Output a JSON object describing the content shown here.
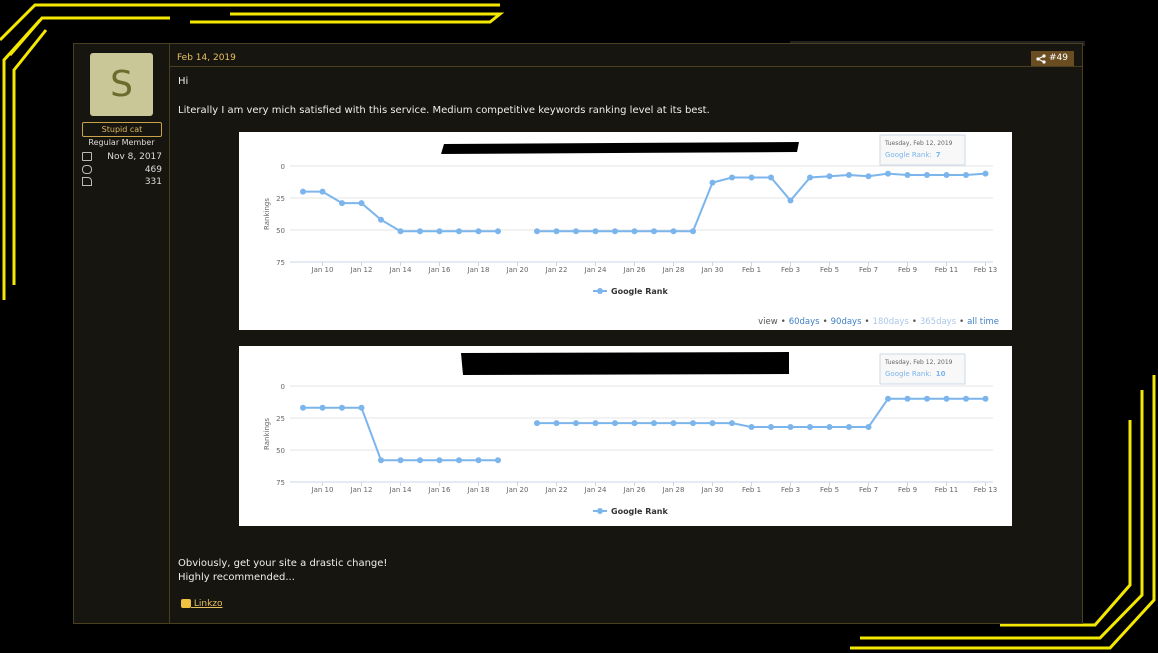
{
  "user": {
    "avatar_letter": "S",
    "title": "Stupid cat",
    "role": "Regular Member",
    "joined": "Nov 8, 2017",
    "messages": "469",
    "reactions": "331"
  },
  "post": {
    "date": "Feb 14, 2019",
    "number": "#49",
    "greeting": "Hi",
    "intro": "Literally I am very mich satisfied with this service. Medium competitive keywords ranking level at its best.",
    "closing": [
      "Obviously, get your site a drastic change!",
      "Highly recommended..."
    ],
    "reaction_user": "Linkzo"
  },
  "chart_data": [
    {
      "type": "line",
      "y_title": "Rankings",
      "ylim": [
        0,
        75
      ],
      "y_reversed": true,
      "yticks": [
        0,
        25,
        50,
        75
      ],
      "grid": true,
      "categories": [
        null,
        "Jan 10",
        null,
        "Jan 12",
        null,
        "Jan 14",
        null,
        "Jan 16",
        null,
        "Jan 18",
        null,
        "Jan 20",
        null,
        "Jan 22",
        null,
        "Jan 24",
        null,
        "Jan 26",
        null,
        "Jan 28",
        null,
        "Jan 30",
        null,
        "Feb 1",
        null,
        "Feb 3",
        null,
        "Feb 5",
        null,
        "Feb 7",
        null,
        "Feb 9",
        null,
        "Feb 11",
        null,
        "Feb 13"
      ],
      "series": [
        {
          "name": "Google Rank",
          "color": "#7cb5ec",
          "values": [
            20,
            20,
            29,
            29,
            42,
            51,
            51,
            51,
            51,
            51,
            51,
            null,
            51,
            51,
            51,
            51,
            51,
            51,
            51,
            51,
            51,
            13,
            9,
            9,
            9,
            27,
            9,
            8,
            7,
            8,
            6,
            7,
            7,
            7,
            7,
            6
          ]
        }
      ],
      "tooltip": {
        "title": "Tuesday, Feb 12, 2019",
        "label": "Google Rank:"
      },
      "range_selector": {
        "prefix": "view",
        "separator": "•",
        "options": [
          "60days",
          "90days",
          "180days",
          "365days",
          "all time"
        ]
      }
    },
    {
      "type": "line",
      "y_title": "Rankings",
      "ylim": [
        0,
        75
      ],
      "y_reversed": true,
      "yticks": [
        0,
        25,
        50,
        75
      ],
      "grid": true,
      "categories": [
        null,
        "Jan 10",
        null,
        "Jan 12",
        null,
        "Jan 14",
        null,
        "Jan 16",
        null,
        "Jan 18",
        null,
        "Jan 20",
        null,
        "Jan 22",
        null,
        "Jan 24",
        null,
        "Jan 26",
        null,
        "Jan 28",
        null,
        "Jan 30",
        null,
        "Feb 1",
        null,
        "Feb 3",
        null,
        "Feb 5",
        null,
        "Feb 7",
        null,
        "Feb 9",
        null,
        "Feb 11",
        null,
        "Feb 13"
      ],
      "series": [
        {
          "name": "Google Rank",
          "color": "#7cb5ec",
          "values": [
            17,
            17,
            17,
            17,
            58,
            58,
            58,
            58,
            58,
            58,
            58,
            null,
            29,
            29,
            29,
            29,
            29,
            29,
            29,
            29,
            29,
            29,
            29,
            32,
            32,
            32,
            32,
            32,
            32,
            32,
            10,
            10,
            10,
            10,
            10,
            10
          ]
        }
      ],
      "tooltip": {
        "title": "Tuesday, Feb 12, 2019",
        "label": "Google Rank:"
      }
    }
  ]
}
